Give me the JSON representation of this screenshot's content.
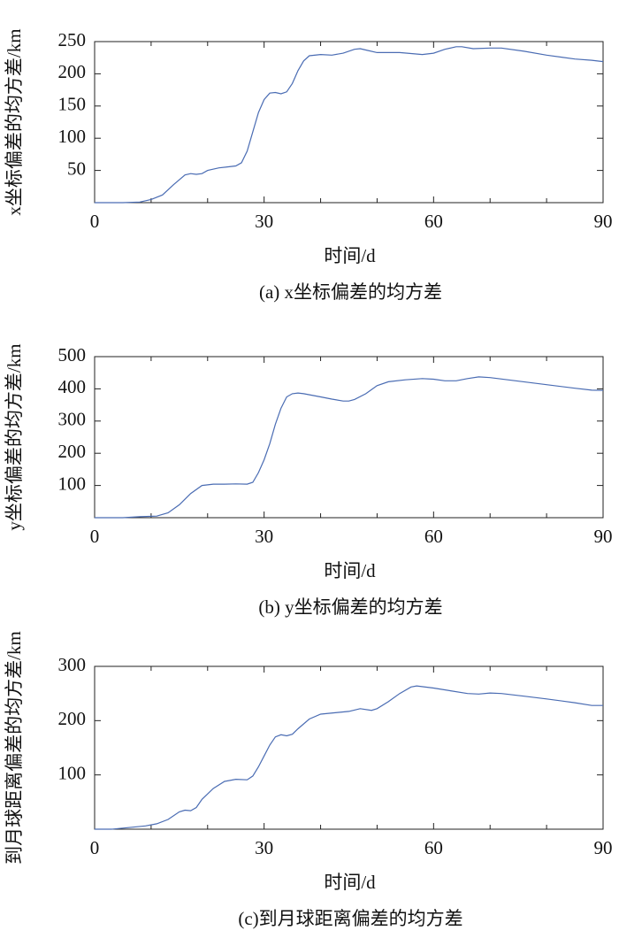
{
  "chart_data": [
    {
      "type": "line",
      "ylabel": "x坐标偏差的均方差/km",
      "xlabel": "时间/d",
      "caption": "(a) x坐标偏差的均方差",
      "color": "#4a6cb3",
      "xlim": [
        0,
        90
      ],
      "xticks": [
        0,
        30,
        60,
        90
      ],
      "xminorticks": [
        10,
        20,
        40,
        50,
        70,
        80
      ],
      "ylim": [
        0,
        250
      ],
      "yticks": [
        50,
        100,
        150,
        200,
        250
      ],
      "x": [
        0,
        5,
        8,
        10,
        12,
        14,
        16,
        17,
        18,
        19,
        20,
        22,
        25,
        26,
        27,
        28,
        29,
        30,
        31,
        32,
        33,
        34,
        35,
        36,
        37,
        38,
        40,
        42,
        44,
        46,
        47,
        48,
        50,
        54,
        58,
        60,
        62,
        64,
        65,
        67,
        70,
        72,
        76,
        80,
        85,
        88,
        90
      ],
      "values": [
        0,
        0,
        1,
        5,
        12,
        28,
        43,
        45,
        44,
        45,
        50,
        54,
        57,
        62,
        80,
        110,
        140,
        160,
        170,
        171,
        169,
        172,
        185,
        205,
        220,
        228,
        230,
        229,
        232,
        238,
        239,
        237,
        233,
        233,
        230,
        232,
        238,
        242,
        242,
        239,
        240,
        240,
        235,
        229,
        223,
        221,
        219
      ]
    },
    {
      "type": "line",
      "ylabel": "y坐标偏差的均方差/km",
      "xlabel": "时间/d",
      "caption": "(b) y坐标偏差的均方差",
      "color": "#4a6cb3",
      "xlim": [
        0,
        90
      ],
      "xticks": [
        0,
        30,
        60,
        90
      ],
      "xminorticks": [
        10,
        20,
        40,
        50,
        70,
        80
      ],
      "ylim": [
        0,
        500
      ],
      "yticks": [
        100,
        200,
        300,
        400,
        500
      ],
      "x": [
        0,
        5,
        8,
        11,
        13,
        15,
        17,
        19,
        21,
        23,
        25,
        27,
        28,
        29,
        30,
        31,
        32,
        33,
        34,
        35,
        36,
        37,
        40,
        42,
        44,
        45,
        46,
        48,
        50,
        52,
        55,
        58,
        60,
        62,
        64,
        66,
        68,
        70,
        75,
        80,
        85,
        88,
        90
      ],
      "values": [
        0,
        0,
        3,
        5,
        15,
        40,
        75,
        100,
        104,
        104,
        105,
        104,
        110,
        140,
        180,
        230,
        290,
        340,
        375,
        385,
        387,
        385,
        375,
        368,
        362,
        362,
        367,
        385,
        410,
        422,
        428,
        432,
        430,
        425,
        425,
        432,
        437,
        435,
        424,
        413,
        402,
        396,
        395
      ]
    },
    {
      "type": "line",
      "ylabel": "到月球距离偏差的均方差/km",
      "xlabel": "时间/d",
      "caption": "(c)到月球距离偏差的均方差",
      "color": "#4a6cb3",
      "xlim": [
        0,
        90
      ],
      "xticks": [
        0,
        30,
        60,
        90
      ],
      "xminorticks": [
        10,
        20,
        40,
        50,
        70,
        80
      ],
      "ylim": [
        0,
        300
      ],
      "yticks": [
        100,
        200,
        300
      ],
      "x": [
        0,
        3,
        6,
        9,
        11,
        13,
        15,
        16,
        17,
        18,
        19,
        21,
        23,
        25,
        27,
        28,
        29,
        30,
        31,
        32,
        33,
        34,
        35,
        36,
        38,
        40,
        43,
        45,
        47,
        49,
        50,
        52,
        54,
        56,
        57,
        60,
        63,
        66,
        68,
        70,
        72,
        76,
        80,
        85,
        88,
        90
      ],
      "values": [
        0,
        0,
        3,
        6,
        10,
        18,
        32,
        35,
        34,
        40,
        55,
        75,
        88,
        92,
        91,
        98,
        115,
        135,
        155,
        170,
        174,
        172,
        175,
        185,
        203,
        212,
        215,
        217,
        222,
        219,
        222,
        235,
        250,
        262,
        264,
        260,
        255,
        250,
        249,
        251,
        250,
        245,
        240,
        233,
        228,
        228
      ]
    }
  ]
}
